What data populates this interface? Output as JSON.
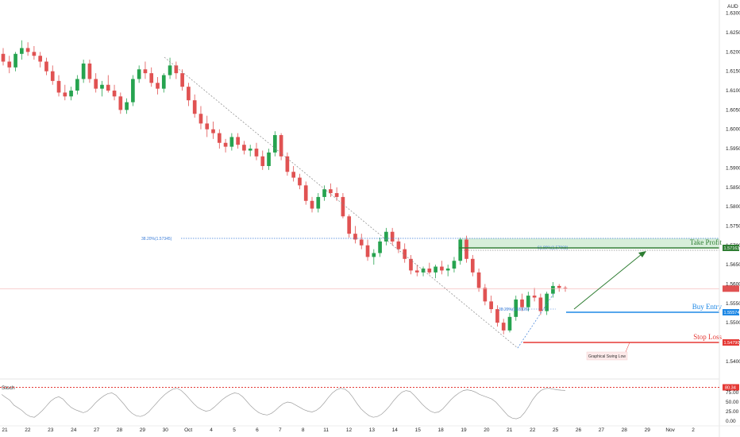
{
  "currency": "AUD",
  "chart_data": {
    "type": "candlestick",
    "title": "",
    "ylabel": "AUD",
    "ylim": [
      1.5375,
      1.6325
    ],
    "y_ticks": [
      "1.63000",
      "1.62500",
      "1.62000",
      "1.61500",
      "1.61000",
      "1.60500",
      "1.60000",
      "1.59500",
      "1.59000",
      "1.58500",
      "1.58000",
      "1.57500",
      "1.57000",
      "1.56500",
      "1.56000",
      "1.55500",
      "1.55000",
      "1.54500",
      "1.54000"
    ],
    "x_ticks": [
      "21",
      "22",
      "23",
      "24",
      "27",
      "28",
      "29",
      "30",
      "Oct",
      "4",
      "5",
      "6",
      "7",
      "8",
      "11",
      "12",
      "13",
      "14",
      "15",
      "18",
      "19",
      "20",
      "21",
      "22",
      "25",
      "26",
      "27",
      "28",
      "29",
      "Nov",
      "2"
    ],
    "candles": [
      [
        1.6195,
        1.621,
        1.6165,
        1.6175
      ],
      [
        1.6175,
        1.619,
        1.6145,
        1.616
      ],
      [
        1.616,
        1.62,
        1.615,
        1.6195
      ],
      [
        1.6195,
        1.623,
        1.618,
        1.621
      ],
      [
        1.621,
        1.6225,
        1.619,
        1.62
      ],
      [
        1.62,
        1.6215,
        1.618,
        1.619
      ],
      [
        1.619,
        1.62,
        1.616,
        1.6175
      ],
      [
        1.6175,
        1.6185,
        1.614,
        1.615
      ],
      [
        1.615,
        1.6165,
        1.6115,
        1.6125
      ],
      [
        1.6125,
        1.614,
        1.6085,
        1.6095
      ],
      [
        1.6095,
        1.6115,
        1.6075,
        1.6085
      ],
      [
        1.6085,
        1.611,
        1.6075,
        1.61
      ],
      [
        1.61,
        1.614,
        1.609,
        1.613
      ],
      [
        1.613,
        1.618,
        1.612,
        1.617
      ],
      [
        1.617,
        1.618,
        1.612,
        1.613
      ],
      [
        1.613,
        1.6145,
        1.6095,
        1.6105
      ],
      [
        1.6105,
        1.6125,
        1.6085,
        1.6115
      ],
      [
        1.6115,
        1.614,
        1.6095,
        1.61
      ],
      [
        1.61,
        1.6115,
        1.6075,
        1.6085
      ],
      [
        1.6085,
        1.6095,
        1.604,
        1.605
      ],
      [
        1.605,
        1.608,
        1.604,
        1.607
      ],
      [
        1.607,
        1.614,
        1.606,
        1.613
      ],
      [
        1.613,
        1.6165,
        1.612,
        1.6155
      ],
      [
        1.6155,
        1.6175,
        1.613,
        1.6145
      ],
      [
        1.6145,
        1.616,
        1.611,
        1.612
      ],
      [
        1.612,
        1.6135,
        1.609,
        1.6105
      ],
      [
        1.6105,
        1.6145,
        1.6095,
        1.614
      ],
      [
        1.614,
        1.6185,
        1.613,
        1.6165
      ],
      [
        1.6165,
        1.6175,
        1.613,
        1.6145
      ],
      [
        1.6145,
        1.6155,
        1.61,
        1.611
      ],
      [
        1.611,
        1.612,
        1.606,
        1.6075
      ],
      [
        1.6075,
        1.609,
        1.603,
        1.604
      ],
      [
        1.604,
        1.606,
        1.6,
        1.6015
      ],
      [
        1.6015,
        1.6035,
        1.598,
        1.6
      ],
      [
        1.6,
        1.602,
        1.5975,
        1.599
      ],
      [
        1.599,
        1.6,
        1.595,
        1.5965
      ],
      [
        1.5965,
        1.5975,
        1.594,
        1.5955
      ],
      [
        1.5955,
        1.599,
        1.5945,
        1.598
      ],
      [
        1.598,
        1.599,
        1.595,
        1.596
      ],
      [
        1.596,
        1.597,
        1.5935,
        1.5945
      ],
      [
        1.5945,
        1.596,
        1.593,
        1.595
      ],
      [
        1.595,
        1.5965,
        1.592,
        1.593
      ],
      [
        1.593,
        1.5945,
        1.5895,
        1.5905
      ],
      [
        1.5905,
        1.595,
        1.5895,
        1.594
      ],
      [
        1.594,
        1.5995,
        1.593,
        1.5985
      ],
      [
        1.5985,
        1.599,
        1.592,
        1.593
      ],
      [
        1.593,
        1.594,
        1.588,
        1.589
      ],
      [
        1.589,
        1.5905,
        1.5865,
        1.5875
      ],
      [
        1.5875,
        1.5885,
        1.5845,
        1.5855
      ],
      [
        1.5855,
        1.5865,
        1.5805,
        1.5815
      ],
      [
        1.5815,
        1.5825,
        1.5785,
        1.5795
      ],
      [
        1.5795,
        1.5835,
        1.5785,
        1.5825
      ],
      [
        1.5825,
        1.5855,
        1.5815,
        1.5845
      ],
      [
        1.5845,
        1.586,
        1.5825,
        1.5835
      ],
      [
        1.5835,
        1.585,
        1.5815,
        1.5825
      ],
      [
        1.5825,
        1.5835,
        1.577,
        1.5775
      ],
      [
        1.5775,
        1.578,
        1.572,
        1.573
      ],
      [
        1.573,
        1.575,
        1.5705,
        1.5715
      ],
      [
        1.5715,
        1.573,
        1.569,
        1.57
      ],
      [
        1.57,
        1.5715,
        1.566,
        1.567
      ],
      [
        1.567,
        1.569,
        1.565,
        1.568
      ],
      [
        1.568,
        1.572,
        1.567,
        1.571
      ],
      [
        1.571,
        1.5745,
        1.57,
        1.5735
      ],
      [
        1.5735,
        1.5745,
        1.57,
        1.571
      ],
      [
        1.571,
        1.572,
        1.568,
        1.569
      ],
      [
        1.569,
        1.5705,
        1.5655,
        1.5665
      ],
      [
        1.5665,
        1.5675,
        1.5625,
        1.5635
      ],
      [
        1.5635,
        1.565,
        1.562,
        1.563
      ],
      [
        1.563,
        1.5645,
        1.562,
        1.564
      ],
      [
        1.564,
        1.5655,
        1.5625,
        1.563
      ],
      [
        1.563,
        1.565,
        1.5615,
        1.5645
      ],
      [
        1.5645,
        1.566,
        1.5625,
        1.5635
      ],
      [
        1.5635,
        1.565,
        1.562,
        1.564
      ],
      [
        1.564,
        1.567,
        1.563,
        1.566
      ],
      [
        1.566,
        1.572,
        1.565,
        1.5715
      ],
      [
        1.5715,
        1.5725,
        1.5655,
        1.5665
      ],
      [
        1.5665,
        1.5675,
        1.562,
        1.563
      ],
      [
        1.563,
        1.564,
        1.558,
        1.559
      ],
      [
        1.559,
        1.56,
        1.5545,
        1.5555
      ],
      [
        1.5555,
        1.557,
        1.5525,
        1.5535
      ],
      [
        1.5535,
        1.5545,
        1.549,
        1.55
      ],
      [
        1.55,
        1.551,
        1.547,
        1.548
      ],
      [
        1.548,
        1.5525,
        1.5475,
        1.5515
      ],
      [
        1.5515,
        1.557,
        1.5505,
        1.556
      ],
      [
        1.556,
        1.5575,
        1.553,
        1.554
      ],
      [
        1.554,
        1.558,
        1.553,
        1.557
      ],
      [
        1.557,
        1.559,
        1.5555,
        1.5565
      ],
      [
        1.5565,
        1.5575,
        1.552,
        1.553
      ],
      [
        1.553,
        1.558,
        1.552,
        1.5575
      ],
      [
        1.5575,
        1.5605,
        1.5565,
        1.5595
      ],
      [
        1.5595,
        1.56,
        1.558,
        1.559
      ],
      [
        1.559,
        1.5595,
        1.558,
        1.5588
      ]
    ],
    "fib_high_label": "38.20%(1.57345)",
    "fib_mid_label": "61.80%(1.57068)",
    "fib_low_label": "38.20%(1.55926)",
    "levels": [
      {
        "name": "Take Profit",
        "value": 1.57163,
        "price_label": "1.57163",
        "color": "#2e7d32"
      },
      {
        "name": "Buy Entry",
        "value": 1.55574,
        "price_label": "1.55574",
        "color": "#1e88e5"
      },
      {
        "name": "Stop Loss",
        "value": 1.5479,
        "price_label": "1.54790",
        "color": "#e53935"
      }
    ],
    "annotation": "Graphical Swing Low",
    "current_price": 1.5588,
    "oscillator": {
      "name": "Stoch",
      "ylim": [
        0,
        100
      ],
      "y_ticks": [
        "75.00",
        "50.00",
        "25.00",
        "0.00"
      ],
      "level_label": "80.34",
      "level": 80.34,
      "values": [
        70,
        62,
        55,
        42,
        35,
        28,
        18,
        12,
        10,
        18,
        28,
        40,
        52,
        60,
        64,
        58,
        46,
        36,
        30,
        26,
        22,
        26,
        36,
        48,
        58,
        66,
        72,
        74,
        68,
        56,
        44,
        30,
        20,
        14,
        12,
        16,
        24,
        36,
        48,
        60,
        70,
        78,
        84,
        86,
        80,
        70,
        58,
        46,
        36,
        30,
        26,
        28,
        36,
        46,
        56,
        64,
        70,
        74,
        72,
        64,
        52,
        40,
        30,
        22,
        18,
        16,
        20,
        28,
        38,
        46,
        50,
        48,
        42,
        36,
        30,
        26,
        24,
        28,
        36,
        48,
        62,
        74,
        82,
        86,
        84,
        76,
        62,
        46,
        32,
        22,
        14,
        10,
        12,
        18,
        28,
        40,
        54,
        66,
        76,
        80,
        78,
        68,
        56,
        44,
        34,
        26,
        22,
        24,
        32,
        44,
        56,
        66,
        74,
        80,
        82,
        80,
        76,
        70,
        66,
        62,
        58,
        50,
        38,
        26,
        14,
        8,
        6,
        10,
        22,
        38,
        56,
        70,
        80,
        85,
        86,
        84,
        82,
        81,
        80.34
      ]
    }
  }
}
